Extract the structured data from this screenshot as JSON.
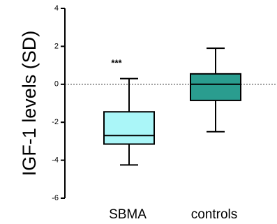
{
  "chart_data": {
    "type": "box",
    "ylabel": "IGF-1 levels (SD)",
    "ylim": [
      -6,
      4
    ],
    "yticks": [
      "4",
      "2",
      "0",
      "-2",
      "-4",
      "-6"
    ],
    "ytick_values": [
      4,
      2,
      0,
      -2,
      -4,
      -6
    ],
    "reference_line": 0,
    "categories": [
      "SBMA",
      "controls"
    ],
    "boxes": [
      {
        "category": "SBMA",
        "min": -4.25,
        "q1": -3.15,
        "median": -2.7,
        "q3": -1.45,
        "max": 0.3,
        "color": "#aaf6f8",
        "annotation": "***"
      },
      {
        "category": "controls",
        "min": -2.5,
        "q1": -0.85,
        "median": 0.0,
        "q3": 0.55,
        "max": 1.9,
        "color": "#2a9d8f",
        "annotation": ""
      }
    ]
  }
}
